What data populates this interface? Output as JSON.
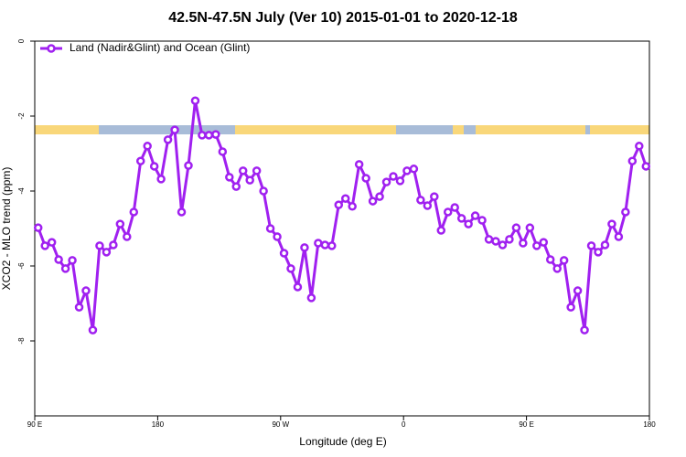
{
  "chart_data": {
    "type": "line",
    "title": "42.5N-47.5N July (Ver 10)   2015-01-01 to 2020-12-18",
    "x_label": "Longitude (deg E)",
    "y_label": "XCO2 - MLO trend (ppm)",
    "xlim": [
      90,
      540
    ],
    "ylim": [
      -10,
      0
    ],
    "xticks": [
      {
        "value": 90,
        "label": "90 E"
      },
      180,
      {
        "value": 270,
        "label": "90 W"
      },
      {
        "value": 360,
        "label": "0"
      },
      {
        "value": 450,
        "label": "90 E"
      },
      {
        "value": 540,
        "label": "180"
      }
    ],
    "yticks": [
      0,
      -2,
      -4,
      -6,
      -8
    ],
    "legend_position": "top-left",
    "x": [
      92.5,
      97.5,
      102.5,
      107.5,
      112.5,
      117.5,
      122.5,
      127.5,
      132.5,
      137.5,
      142.5,
      147.5,
      152.5,
      157.5,
      162.5,
      167.5,
      172.5,
      177.5,
      182.5,
      187.5,
      192.5,
      197.5,
      202.5,
      207.5,
      212.5,
      217.5,
      222.5,
      227.5,
      232.5,
      237.5,
      242.5,
      247.5,
      252.5,
      257.5,
      262.5,
      267.5,
      272.5,
      277.5,
      282.5,
      287.5,
      292.5,
      297.5,
      302.5,
      307.5,
      312.5,
      317.5,
      322.5,
      327.5,
      332.5,
      337.5,
      342.5,
      347.5,
      352.5,
      357.5,
      362.5,
      367.5,
      372.5,
      377.5,
      382.5,
      387.5,
      392.5,
      397.5,
      402.5,
      407.5,
      412.5,
      417.5,
      422.5,
      427.5,
      432.5,
      437.5,
      442.5,
      447.5,
      452.5,
      457.5,
      462.5,
      467.5,
      472.5,
      477.5,
      482.5,
      487.5,
      492.5,
      497.5,
      502.5,
      507.5,
      512.5,
      517.5,
      522.5,
      527.5,
      532.5,
      537.5
    ],
    "series": [
      {
        "name": "Land (Nadir&Glint) and Ocean (Glint)",
        "color": "#a020f0",
        "values": [
          -4.98,
          -5.46,
          -5.37,
          -5.83,
          -6.07,
          -5.85,
          -7.1,
          -6.66,
          -7.71,
          -5.46,
          -5.63,
          -5.44,
          -4.88,
          -5.22,
          -4.56,
          -3.2,
          -2.8,
          -3.34,
          -3.68,
          -2.63,
          -2.37,
          -4.56,
          -3.32,
          -1.59,
          -2.51,
          -2.51,
          -2.49,
          -2.95,
          -3.63,
          -3.88,
          -3.46,
          -3.71,
          -3.46,
          -4.0,
          -5.0,
          -5.22,
          -5.66,
          -6.07,
          -6.56,
          -5.51,
          -6.85,
          -5.39,
          -5.44,
          -5.46,
          -4.37,
          -4.2,
          -4.41,
          -3.29,
          -3.66,
          -4.27,
          -4.15,
          -3.76,
          -3.61,
          -3.73,
          -3.46,
          -3.41,
          -4.24,
          -4.39,
          -4.15,
          -5.05,
          -4.56,
          -4.44,
          -4.73,
          -4.88,
          -4.66,
          -4.78,
          -5.29,
          -5.34,
          -5.44,
          -5.29,
          -4.98,
          -5.39,
          -4.98,
          -5.46,
          -5.37,
          -5.83,
          -6.07,
          -5.85,
          -7.1,
          -6.66,
          -7.71,
          -5.46,
          -5.63,
          -5.44,
          -4.88,
          -5.22,
          -4.56,
          -3.2,
          -2.8,
          -3.34
        ]
      }
    ]
  }
}
